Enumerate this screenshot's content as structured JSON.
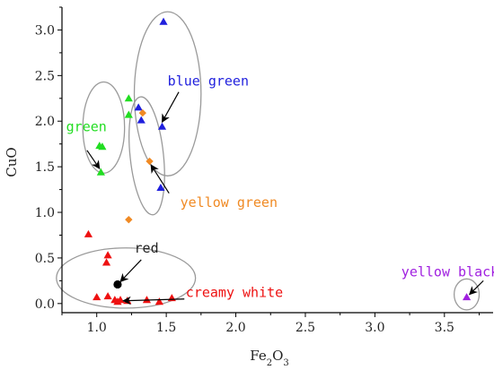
{
  "chart_data": {
    "type": "scatter",
    "xlabel": "Fe2O3",
    "ylabel": "CuO",
    "xlim": [
      0.75,
      3.85
    ],
    "ylim": [
      -0.1,
      3.25
    ],
    "x_ticks": [
      "1.0",
      "1.5",
      "2.0",
      "2.5",
      "3.0",
      "3.5"
    ],
    "y_ticks": [
      "0.0",
      "0.5",
      "1.0",
      "1.5",
      "2.0",
      "2.5",
      "3.0"
    ],
    "grid": false,
    "legend": "none",
    "series": [
      {
        "name": "blue green",
        "marker": "triangle",
        "color": "#1f1fdd",
        "points": [
          [
            1.48,
            3.09
          ],
          [
            1.3,
            2.15
          ],
          [
            1.32,
            2.01
          ],
          [
            1.47,
            1.94
          ],
          [
            1.46,
            1.27
          ]
        ]
      },
      {
        "name": "green",
        "marker": "triangle",
        "color": "#22dd22",
        "points": [
          [
            1.23,
            2.25
          ],
          [
            1.23,
            2.07
          ],
          [
            1.02,
            1.73
          ],
          [
            1.04,
            1.72
          ],
          [
            1.03,
            1.44
          ]
        ]
      },
      {
        "name": "yellow green",
        "marker": "diamond",
        "color": "#f08a24",
        "points": [
          [
            1.33,
            2.09
          ],
          [
            1.38,
            1.56
          ],
          [
            1.23,
            0.92
          ]
        ]
      },
      {
        "name": "red",
        "marker": "circle",
        "color": "#000000",
        "points": [
          [
            1.15,
            0.21
          ]
        ]
      },
      {
        "name": "creamy white",
        "marker": "triangle",
        "color": "#ee1111",
        "points": [
          [
            0.94,
            0.76
          ],
          [
            1.08,
            0.53
          ],
          [
            1.07,
            0.45
          ],
          [
            1.0,
            0.07
          ],
          [
            1.08,
            0.08
          ],
          [
            1.13,
            0.04
          ],
          [
            1.15,
            0.02
          ],
          [
            1.17,
            0.04
          ],
          [
            1.22,
            0.03
          ],
          [
            1.36,
            0.04
          ],
          [
            1.45,
            0.02
          ],
          [
            1.54,
            0.06
          ]
        ]
      },
      {
        "name": "yellow black",
        "marker": "triangle",
        "color": "#a020e0",
        "points": [
          [
            3.66,
            0.07
          ]
        ]
      }
    ],
    "ellipses": [
      {
        "cx": 1.51,
        "cy": 2.3,
        "rx": 0.24,
        "ry": 0.9,
        "rotate": 0
      },
      {
        "cx": 1.05,
        "cy": 1.93,
        "rx": 0.15,
        "ry": 0.5,
        "rotate": 0
      },
      {
        "cx": 1.36,
        "cy": 1.62,
        "rx": 0.12,
        "ry": 0.65,
        "rotate": -6
      },
      {
        "cx": 1.21,
        "cy": 0.28,
        "rx": 0.5,
        "ry": 0.33,
        "rotate": 0
      },
      {
        "cx": 3.66,
        "cy": 0.1,
        "rx": 0.09,
        "ry": 0.17,
        "rotate": 0
      }
    ],
    "annotations": [
      {
        "text": "blue green",
        "color": "#1f1fdd",
        "tx": 1.51,
        "ty": 2.39,
        "arrow_from": [
          1.59,
          2.32
        ],
        "arrow_to": [
          1.47,
          1.99
        ]
      },
      {
        "text": "green",
        "color": "#22dd22",
        "tx": 0.78,
        "ty": 1.89,
        "arrow_from": [
          0.93,
          1.68
        ],
        "arrow_to": [
          1.02,
          1.48
        ]
      },
      {
        "text": "yellow green",
        "color": "#f08a24",
        "tx": 1.6,
        "ty": 1.06,
        "arrow_from": [
          1.52,
          1.21
        ],
        "arrow_to": [
          1.39,
          1.52
        ]
      },
      {
        "text": "red",
        "color": "#222222",
        "tx": 1.27,
        "ty": 0.56,
        "arrow_from": [
          1.32,
          0.48
        ],
        "arrow_to": [
          1.17,
          0.24
        ]
      },
      {
        "text": "creamy white",
        "color": "#ee1111",
        "tx": 1.64,
        "ty": 0.07,
        "arrow_from": [
          1.63,
          0.05
        ],
        "arrow_to": [
          1.19,
          0.03
        ]
      },
      {
        "text": "yellow black",
        "color": "#a020e0",
        "tx": 3.19,
        "ty": 0.3,
        "arrow_from": [
          3.78,
          0.25
        ],
        "arrow_to": [
          3.68,
          0.1
        ]
      }
    ]
  }
}
